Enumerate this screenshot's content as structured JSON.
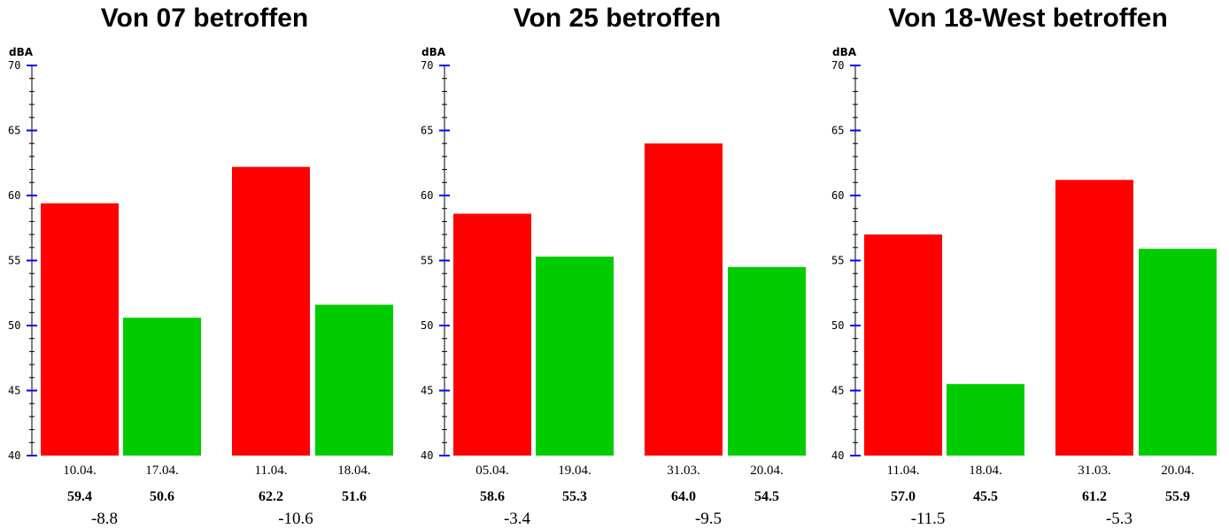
{
  "colors": {
    "before": "#ff0000",
    "after": "#00cc00",
    "axis": "#000000",
    "major_tick": "#0000ff"
  },
  "chart_data": [
    {
      "type": "bar",
      "title": "Von 07 betroffen",
      "ylabel": "dBA",
      "ylim": [
        40,
        70
      ],
      "yticks": [
        "40",
        "45",
        "50",
        "55",
        "60",
        "65",
        "70"
      ],
      "groups": [
        {
          "bars": [
            {
              "date": "10.04.",
              "value": 59.4,
              "label": "59.4",
              "kind": "before"
            },
            {
              "date": "17.04.",
              "value": 50.6,
              "label": "50.6",
              "kind": "after"
            }
          ],
          "diff": "-8.8"
        },
        {
          "bars": [
            {
              "date": "11.04.",
              "value": 62.2,
              "label": "62.2",
              "kind": "before"
            },
            {
              "date": "18.04.",
              "value": 51.6,
              "label": "51.6",
              "kind": "after"
            }
          ],
          "diff": "-10.6"
        }
      ]
    },
    {
      "type": "bar",
      "title": "Von 25 betroffen",
      "ylabel": "dBA",
      "ylim": [
        40,
        70
      ],
      "yticks": [
        "40",
        "45",
        "50",
        "55",
        "60",
        "65",
        "70"
      ],
      "groups": [
        {
          "bars": [
            {
              "date": "05.04.",
              "value": 58.6,
              "label": "58.6",
              "kind": "before"
            },
            {
              "date": "19.04.",
              "value": 55.3,
              "label": "55.3",
              "kind": "after"
            }
          ],
          "diff": "-3.4"
        },
        {
          "bars": [
            {
              "date": "31.03.",
              "value": 64.0,
              "label": "64.0",
              "kind": "before"
            },
            {
              "date": "20.04.",
              "value": 54.5,
              "label": "54.5",
              "kind": "after"
            }
          ],
          "diff": "-9.5"
        }
      ]
    },
    {
      "type": "bar",
      "title": "Von 18-West betroffen",
      "ylabel": "dBA",
      "ylim": [
        40,
        70
      ],
      "yticks": [
        "40",
        "45",
        "50",
        "55",
        "60",
        "65",
        "70"
      ],
      "groups": [
        {
          "bars": [
            {
              "date": "11.04.",
              "value": 57.0,
              "label": "57.0",
              "kind": "before"
            },
            {
              "date": "18.04.",
              "value": 45.5,
              "label": "45.5",
              "kind": "after"
            }
          ],
          "diff": "-11.5"
        },
        {
          "bars": [
            {
              "date": "31.03.",
              "value": 61.2,
              "label": "61.2",
              "kind": "before"
            },
            {
              "date": "20.04.",
              "value": 55.9,
              "label": "55.9",
              "kind": "after"
            }
          ],
          "diff": "-5.3"
        }
      ]
    }
  ]
}
